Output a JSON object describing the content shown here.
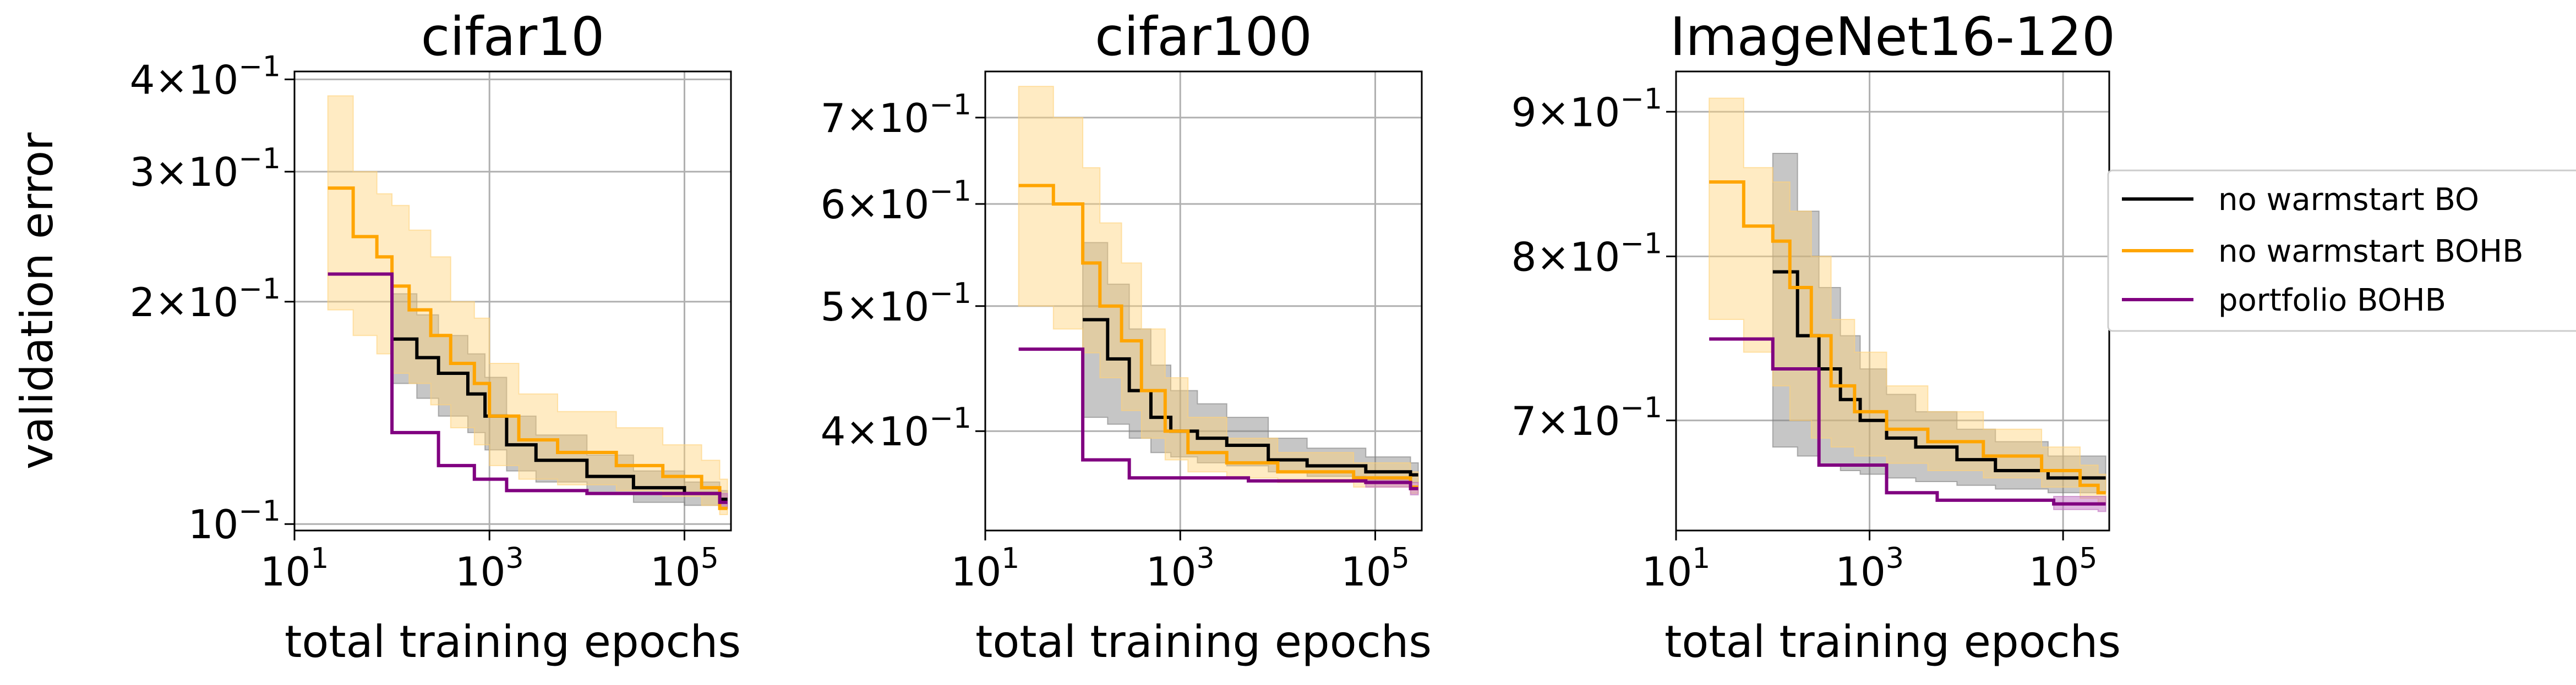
{
  "chart_data": [
    {
      "type": "line",
      "title": "cifar10",
      "xlabel": "total training epochs",
      "ylabel": "validation error",
      "xscale": "log",
      "yscale": "log",
      "xlim": [
        10,
        300000
      ],
      "ylim": [
        0.098,
        0.41
      ],
      "yticks": [
        {
          "value": 0.4,
          "mant": "4",
          "exp": "−1"
        },
        {
          "value": 0.3,
          "mant": "3",
          "exp": "−1"
        },
        {
          "value": 0.2,
          "mant": "2",
          "exp": "−1"
        },
        {
          "value": 0.1,
          "mant": "",
          "exp": "−1"
        }
      ],
      "grid": true,
      "series": [
        {
          "name": "no warmstart BO",
          "x": [
            100,
            180,
            300,
            600,
            900,
            1500,
            3000,
            10000,
            30000,
            100000,
            230000
          ],
          "y": [
            0.178,
            0.168,
            0.16,
            0.15,
            0.14,
            0.128,
            0.122,
            0.116,
            0.112,
            0.11,
            0.108
          ],
          "lo": [
            0.155,
            0.148,
            0.14,
            0.133,
            0.126,
            0.118,
            0.114,
            0.11,
            0.107,
            0.106,
            0.105
          ],
          "hi": [
            0.205,
            0.192,
            0.18,
            0.17,
            0.158,
            0.14,
            0.132,
            0.124,
            0.118,
            0.114,
            0.111
          ]
        },
        {
          "name": "no warmstart BOHB",
          "x": [
            22,
            40,
            70,
            100,
            150,
            250,
            400,
            700,
            1000,
            2000,
            5000,
            20000,
            60000,
            150000,
            230000
          ],
          "y": [
            0.285,
            0.245,
            0.23,
            0.21,
            0.195,
            0.18,
            0.165,
            0.155,
            0.14,
            0.13,
            0.125,
            0.12,
            0.116,
            0.112,
            0.105
          ],
          "lo": [
            0.195,
            0.18,
            0.17,
            0.16,
            0.155,
            0.145,
            0.135,
            0.128,
            0.12,
            0.115,
            0.113,
            0.111,
            0.109,
            0.106,
            0.103
          ],
          "hi": [
            0.38,
            0.3,
            0.28,
            0.27,
            0.25,
            0.23,
            0.2,
            0.19,
            0.165,
            0.15,
            0.142,
            0.135,
            0.128,
            0.122,
            0.115
          ]
        },
        {
          "name": "portfolio BOHB",
          "x": [
            22,
            100,
            300,
            700,
            1500,
            10000,
            230000
          ],
          "y": [
            0.218,
            0.133,
            0.12,
            0.115,
            0.111,
            0.11,
            0.107
          ],
          "lo": [
            0.218,
            0.133,
            0.12,
            0.115,
            0.111,
            0.11,
            0.105
          ],
          "hi": [
            0.218,
            0.133,
            0.12,
            0.115,
            0.111,
            0.11,
            0.11
          ]
        }
      ]
    },
    {
      "type": "line",
      "title": "cifar100",
      "xlabel": "total training epochs",
      "ylabel": "",
      "xscale": "log",
      "yscale": "log",
      "xlim": [
        10,
        300000
      ],
      "ylim": [
        0.335,
        0.76
      ],
      "yticks": [
        {
          "value": 0.7,
          "mant": "7",
          "exp": "−1"
        },
        {
          "value": 0.6,
          "mant": "6",
          "exp": "−1"
        },
        {
          "value": 0.5,
          "mant": "5",
          "exp": "−1"
        },
        {
          "value": 0.4,
          "mant": "4",
          "exp": "−1"
        }
      ],
      "grid": true,
      "series": [
        {
          "name": "no warmstart BO",
          "x": [
            100,
            180,
            300,
            500,
            800,
            1500,
            3000,
            8000,
            20000,
            80000,
            230000
          ],
          "y": [
            0.488,
            0.455,
            0.43,
            0.41,
            0.4,
            0.395,
            0.39,
            0.38,
            0.376,
            0.372,
            0.37
          ],
          "lo": [
            0.41,
            0.405,
            0.395,
            0.385,
            0.382,
            0.378,
            0.376,
            0.372,
            0.369,
            0.366,
            0.365
          ],
          "hi": [
            0.56,
            0.52,
            0.48,
            0.45,
            0.43,
            0.42,
            0.41,
            0.395,
            0.388,
            0.382,
            0.378
          ]
        },
        {
          "name": "no warmstart BOHB",
          "x": [
            22,
            50,
            100,
            150,
            250,
            400,
            700,
            1200,
            3000,
            10000,
            60000,
            230000
          ],
          "y": [
            0.62,
            0.6,
            0.54,
            0.5,
            0.47,
            0.43,
            0.4,
            0.385,
            0.378,
            0.372,
            0.368,
            0.362
          ],
          "lo": [
            0.5,
            0.48,
            0.46,
            0.44,
            0.415,
            0.395,
            0.38,
            0.372,
            0.368,
            0.365,
            0.362,
            0.358
          ],
          "hi": [
            0.74,
            0.7,
            0.64,
            0.58,
            0.54,
            0.48,
            0.44,
            0.41,
            0.395,
            0.385,
            0.378,
            0.372
          ]
        },
        {
          "name": "portfolio BOHB",
          "x": [
            22,
            100,
            300,
            1000,
            5000,
            30000,
            80000,
            230000
          ],
          "y": [
            0.463,
            0.38,
            0.368,
            0.368,
            0.366,
            0.366,
            0.365,
            0.361
          ],
          "lo": [
            0.463,
            0.38,
            0.368,
            0.368,
            0.366,
            0.366,
            0.362,
            0.357
          ],
          "hi": [
            0.463,
            0.38,
            0.368,
            0.368,
            0.366,
            0.366,
            0.368,
            0.365
          ]
        }
      ]
    },
    {
      "type": "line",
      "title": "ImageNet16-120",
      "xlabel": "total training epochs",
      "ylabel": "",
      "xscale": "log",
      "yscale": "log",
      "xlim": [
        10,
        300000
      ],
      "ylim": [
        0.64,
        0.93
      ],
      "yticks": [
        {
          "value": 0.9,
          "mant": "9",
          "exp": "−1"
        },
        {
          "value": 0.8,
          "mant": "8",
          "exp": "−1"
        },
        {
          "value": 0.7,
          "mant": "7",
          "exp": "−1"
        }
      ],
      "grid": true,
      "series": [
        {
          "name": "no warmstart BO",
          "x": [
            100,
            180,
            300,
            500,
            800,
            1500,
            3000,
            8000,
            20000,
            70000
          ],
          "y": [
            0.79,
            0.75,
            0.73,
            0.712,
            0.7,
            0.69,
            0.685,
            0.678,
            0.672,
            0.668
          ],
          "lo": [
            0.685,
            0.68,
            0.675,
            0.672,
            0.67,
            0.668,
            0.666,
            0.664,
            0.662,
            0.66
          ],
          "hi": [
            0.87,
            0.83,
            0.78,
            0.75,
            0.73,
            0.715,
            0.705,
            0.695,
            0.688,
            0.68
          ]
        },
        {
          "name": "no warmstart BOHB",
          "x": [
            22,
            50,
            100,
            150,
            250,
            400,
            700,
            1500,
            4000,
            15000,
            60000,
            150000,
            230000
          ],
          "y": [
            0.85,
            0.82,
            0.81,
            0.78,
            0.75,
            0.72,
            0.705,
            0.695,
            0.688,
            0.68,
            0.672,
            0.664,
            0.66
          ],
          "lo": [
            0.76,
            0.74,
            0.72,
            0.7,
            0.69,
            0.685,
            0.68,
            0.676,
            0.672,
            0.668,
            0.663,
            0.657,
            0.654
          ],
          "hi": [
            0.91,
            0.86,
            0.85,
            0.83,
            0.8,
            0.76,
            0.74,
            0.72,
            0.705,
            0.695,
            0.685,
            0.675,
            0.67
          ]
        },
        {
          "name": "portfolio BOHB",
          "x": [
            22,
            100,
            300,
            1500,
            5000,
            80000,
            230000
          ],
          "y": [
            0.748,
            0.73,
            0.675,
            0.66,
            0.656,
            0.654,
            0.654
          ],
          "lo": [
            0.748,
            0.73,
            0.675,
            0.66,
            0.656,
            0.651,
            0.65
          ],
          "hi": [
            0.748,
            0.73,
            0.675,
            0.66,
            0.656,
            0.658,
            0.658
          ]
        }
      ]
    }
  ],
  "legend": {
    "position": "right",
    "entries": [
      {
        "label": "no warmstart BO",
        "color": "#000000"
      },
      {
        "label": "no warmstart BOHB",
        "color": "#ffa500"
      },
      {
        "label": "portfolio BOHB",
        "color": "#800080"
      }
    ]
  },
  "xticks": [
    {
      "value": 10,
      "mant": "10",
      "exp": "1"
    },
    {
      "value": 1000,
      "mant": "10",
      "exp": "3"
    },
    {
      "value": 100000,
      "mant": "10",
      "exp": "5"
    }
  ],
  "colors": {
    "bo": "#000000",
    "bo_fill": "#808080",
    "bohb": "#ffa500",
    "bohb_fill": "#ffd27a",
    "portfolio": "#800080",
    "portfolio_fill": "#c070c0",
    "grid": "#b0b0b0"
  }
}
